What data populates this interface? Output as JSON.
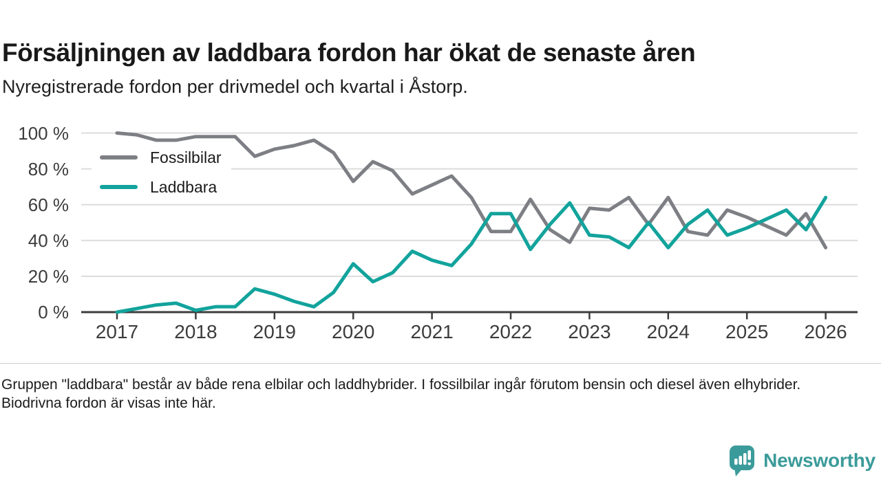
{
  "header": {
    "title": "Försäljningen av laddbara fordon har ökat de senaste åren",
    "subtitle": "Nyregistrerade fordon per drivmedel och kvartal i Åstorp."
  },
  "chart_data": {
    "type": "line",
    "x": [
      "2017-Q1",
      "2017-Q2",
      "2017-Q3",
      "2017-Q4",
      "2018-Q1",
      "2018-Q2",
      "2018-Q3",
      "2018-Q4",
      "2019-Q1",
      "2019-Q2",
      "2019-Q3",
      "2019-Q4",
      "2020-Q1",
      "2020-Q2",
      "2020-Q3",
      "2020-Q4",
      "2021-Q1",
      "2021-Q2",
      "2021-Q3",
      "2021-Q4",
      "2022-Q1",
      "2022-Q2",
      "2022-Q3",
      "2022-Q4",
      "2023-Q1",
      "2023-Q2",
      "2023-Q3",
      "2023-Q4",
      "2024-Q1",
      "2024-Q2",
      "2024-Q3",
      "2024-Q4",
      "2025-Q1",
      "2025-Q2",
      "2025-Q3",
      "2025-Q4",
      "2026-Q1"
    ],
    "series": [
      {
        "name": "Fossilbilar",
        "color": "#7d7f84",
        "values": [
          100,
          99,
          96,
          96,
          98,
          98,
          98,
          87,
          91,
          93,
          96,
          89,
          73,
          84,
          79,
          66,
          71,
          76,
          64,
          45,
          45,
          63,
          46,
          39,
          58,
          57,
          64,
          49,
          64,
          45,
          43,
          57,
          53,
          48,
          43,
          55,
          36
        ]
      },
      {
        "name": "Laddbara",
        "color": "#12a39c",
        "values": [
          0,
          2,
          4,
          5,
          1,
          3,
          3,
          13,
          10,
          6,
          3,
          11,
          27,
          17,
          22,
          34,
          29,
          26,
          38,
          55,
          55,
          35,
          49,
          61,
          43,
          42,
          36,
          50,
          36,
          49,
          57,
          43,
          47,
          52,
          57,
          46,
          64
        ]
      }
    ],
    "ylim": [
      0,
      100
    ],
    "y_ticks": [
      {
        "label": "100 %",
        "value": 100
      },
      {
        "label": "80 %",
        "value": 80
      },
      {
        "label": "60 %",
        "value": 60
      },
      {
        "label": "40 %",
        "value": 40
      },
      {
        "label": "20 %",
        "value": 20
      },
      {
        "label": "0 %",
        "value": 0
      }
    ],
    "x_ticks": [
      "2017",
      "2018",
      "2019",
      "2020",
      "2021",
      "2022",
      "2023",
      "2024",
      "2025",
      "2026"
    ],
    "grid": "horizontal",
    "legend_position": "inside-top-left",
    "unit": "%"
  },
  "footer": {
    "note": "Gruppen \"laddbara\" består av både rena elbilar och laddhybrider. I fossilbilar ingår förutom bensin och diesel även elhybrider. Biodrivna fordon är visas inte här.",
    "brand": "Newsworthy"
  },
  "colors": {
    "grid": "#dcdcdc",
    "axis": "#3c3c3c",
    "divider": "#cccccc",
    "brand": "#3b9b9a"
  }
}
